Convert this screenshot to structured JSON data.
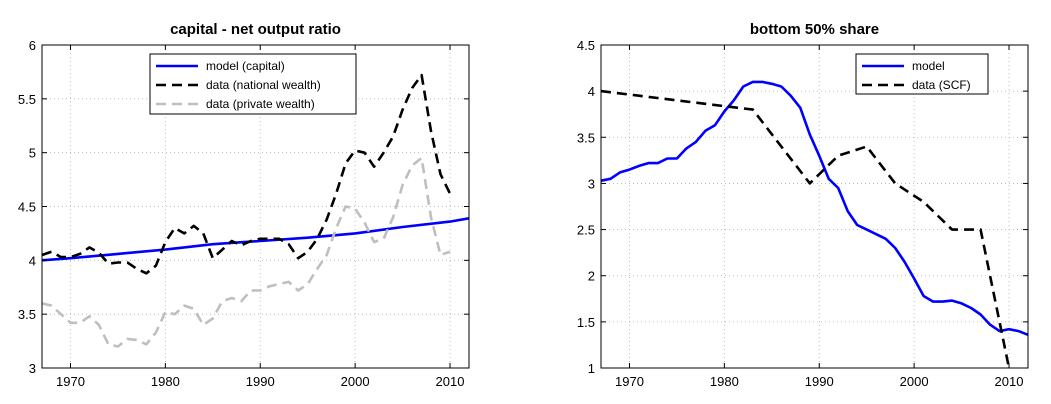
{
  "chart_data": [
    {
      "type": "line",
      "title": "capital - net output ratio",
      "xlabel": "",
      "ylabel": "",
      "xlim": [
        1967,
        2012
      ],
      "ylim": [
        3,
        6
      ],
      "xticks": [
        1970,
        1980,
        1990,
        2000,
        2010
      ],
      "yticks": [
        3,
        3.5,
        4,
        4.5,
        5,
        5.5,
        6
      ],
      "yticklabels": [
        "3",
        "3.5",
        "4",
        "4.5",
        "5",
        "5.5",
        "6"
      ],
      "grid": "dotted",
      "legend_position": "top-center",
      "series": [
        {
          "name": "model (capital)",
          "color": "#0000ff",
          "dash": "solid",
          "x": [
            1967,
            1970,
            1975,
            1980,
            1985,
            1990,
            1995,
            2000,
            2005,
            2010,
            2012
          ],
          "y": [
            4.0,
            4.02,
            4.06,
            4.1,
            4.15,
            4.18,
            4.21,
            4.25,
            4.31,
            4.36,
            4.39
          ]
        },
        {
          "name": "data (national wealth)",
          "color": "#000000",
          "dash": "dashed",
          "x": [
            1967,
            1968,
            1969,
            1970,
            1971,
            1972,
            1973,
            1974,
            1975,
            1976,
            1977,
            1978,
            1979,
            1980,
            1981,
            1982,
            1983,
            1984,
            1985,
            1986,
            1987,
            1988,
            1989,
            1990,
            1991,
            1992,
            1993,
            1994,
            1995,
            1996,
            1997,
            1998,
            1999,
            2000,
            2001,
            2002,
            2003,
            2004,
            2005,
            2006,
            2007,
            2008,
            2009,
            2010
          ],
          "y": [
            4.05,
            4.08,
            4.03,
            4.03,
            4.06,
            4.12,
            4.07,
            3.97,
            3.98,
            3.98,
            3.92,
            3.88,
            3.95,
            4.17,
            4.3,
            4.25,
            4.32,
            4.25,
            4.02,
            4.1,
            4.18,
            4.14,
            4.18,
            4.2,
            4.2,
            4.2,
            4.15,
            4.02,
            4.08,
            4.2,
            4.38,
            4.62,
            4.9,
            5.02,
            5.0,
            4.87,
            5.0,
            5.15,
            5.4,
            5.6,
            5.72,
            5.2,
            4.8,
            4.62
          ]
        },
        {
          "name": "data (private wealth)",
          "color": "#bfbfbf",
          "dash": "dashed",
          "x": [
            1967,
            1968,
            1969,
            1970,
            1971,
            1972,
            1973,
            1974,
            1975,
            1976,
            1977,
            1978,
            1979,
            1980,
            1981,
            1982,
            1983,
            1984,
            1985,
            1986,
            1987,
            1988,
            1989,
            1990,
            1991,
            1992,
            1993,
            1994,
            1995,
            1996,
            1997,
            1998,
            1999,
            2000,
            2001,
            2002,
            2003,
            2004,
            2005,
            2006,
            2007,
            2008,
            2009,
            2010
          ],
          "y": [
            3.6,
            3.58,
            3.5,
            3.42,
            3.42,
            3.48,
            3.4,
            3.22,
            3.2,
            3.27,
            3.26,
            3.22,
            3.33,
            3.52,
            3.5,
            3.58,
            3.55,
            3.4,
            3.46,
            3.62,
            3.65,
            3.62,
            3.72,
            3.72,
            3.76,
            3.78,
            3.8,
            3.72,
            3.78,
            3.92,
            4.05,
            4.3,
            4.5,
            4.48,
            4.35,
            4.17,
            4.2,
            4.4,
            4.7,
            4.88,
            4.95,
            4.4,
            4.05,
            4.08
          ]
        }
      ]
    },
    {
      "type": "line",
      "title": "bottom 50% share",
      "xlabel": "",
      "ylabel": "",
      "xlim": [
        1967,
        2012
      ],
      "ylim": [
        1,
        4.5
      ],
      "xticks": [
        1970,
        1980,
        1990,
        2000,
        2010
      ],
      "yticks": [
        1,
        1.5,
        2,
        2.5,
        3,
        3.5,
        4,
        4.5
      ],
      "yticklabels": [
        "1",
        "1.5",
        "2",
        "2.5",
        "3",
        "3.5",
        "4",
        "4.5"
      ],
      "grid": "dotted",
      "legend_position": "top-right",
      "series": [
        {
          "name": "model",
          "color": "#0000ff",
          "dash": "solid",
          "x": [
            1967,
            1968,
            1969,
            1970,
            1971,
            1972,
            1973,
            1974,
            1975,
            1976,
            1977,
            1978,
            1979,
            1980,
            1981,
            1982,
            1983,
            1984,
            1985,
            1986,
            1987,
            1988,
            1989,
            1990,
            1991,
            1992,
            1993,
            1994,
            1995,
            1996,
            1997,
            1998,
            1999,
            2000,
            2001,
            2002,
            2003,
            2004,
            2005,
            2006,
            2007,
            2008,
            2009,
            2010,
            2011,
            2012
          ],
          "y": [
            3.03,
            3.05,
            3.12,
            3.15,
            3.19,
            3.22,
            3.22,
            3.27,
            3.27,
            3.38,
            3.45,
            3.57,
            3.63,
            3.78,
            3.9,
            4.05,
            4.1,
            4.1,
            4.08,
            4.05,
            3.95,
            3.82,
            3.53,
            3.3,
            3.05,
            2.95,
            2.7,
            2.55,
            2.5,
            2.45,
            2.4,
            2.3,
            2.15,
            1.97,
            1.78,
            1.72,
            1.72,
            1.73,
            1.7,
            1.65,
            1.58,
            1.47,
            1.4,
            1.42,
            1.4,
            1.36
          ]
        },
        {
          "name": "data (SCF)",
          "color": "#000000",
          "dash": "dashed",
          "x": [
            1967,
            1983,
            1989,
            1992,
            1995,
            1998,
            2001,
            2004,
            2007,
            2010
          ],
          "y": [
            4.0,
            3.8,
            3.0,
            3.3,
            3.4,
            3.0,
            2.8,
            2.5,
            2.5,
            1.0
          ]
        }
      ]
    }
  ]
}
